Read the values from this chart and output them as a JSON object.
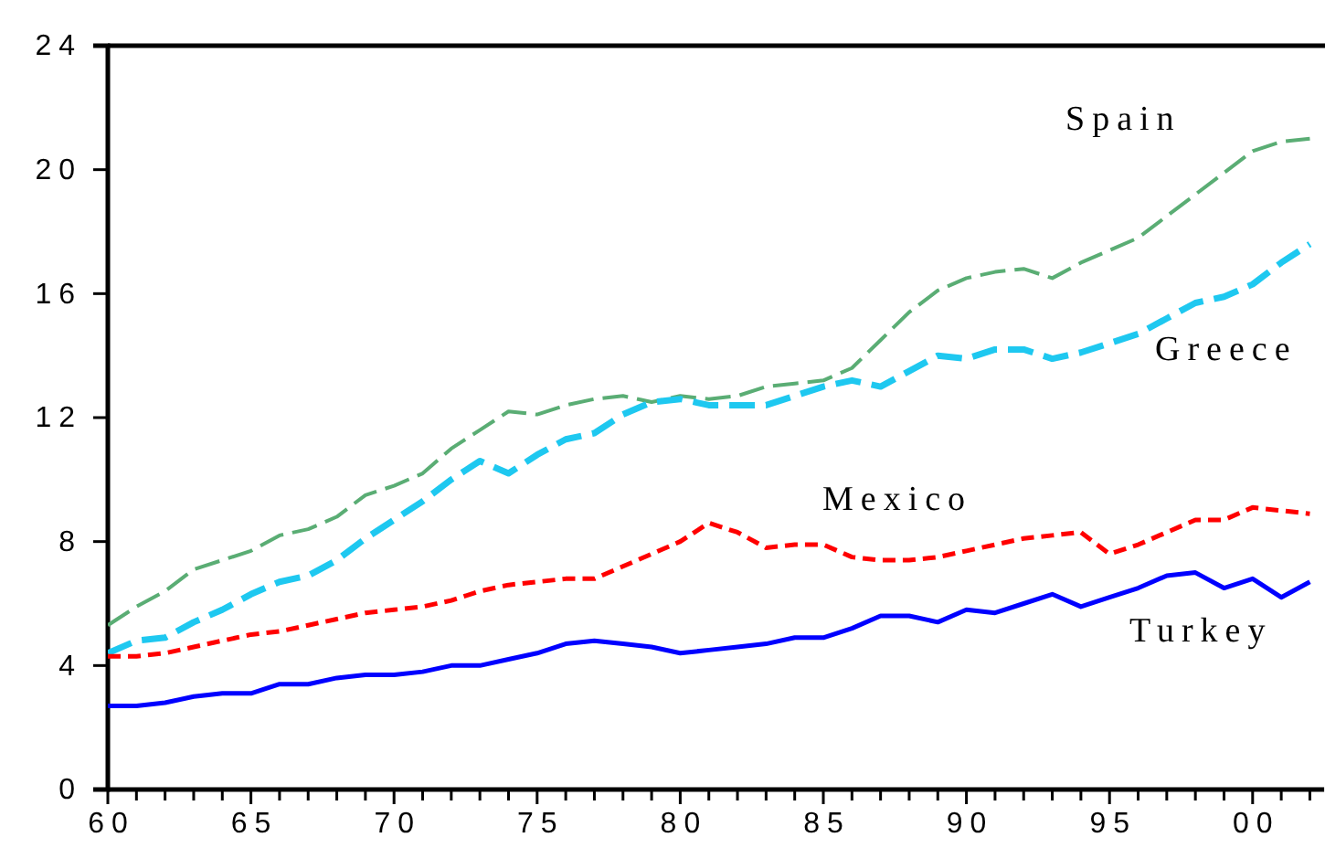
{
  "chart_data": {
    "type": "line",
    "xlim": [
      1960,
      2002.5
    ],
    "ylim": [
      0,
      24
    ],
    "yticks": [
      0,
      4,
      8,
      12,
      16,
      20,
      24
    ],
    "xticks": [
      {
        "value": 1960,
        "label": "60"
      },
      {
        "value": 1961,
        "label": null
      },
      {
        "value": 1962,
        "label": null
      },
      {
        "value": 1963,
        "label": null
      },
      {
        "value": 1964,
        "label": null
      },
      {
        "value": 1965,
        "label": "65"
      },
      {
        "value": 1966,
        "label": null
      },
      {
        "value": 1967,
        "label": null
      },
      {
        "value": 1968,
        "label": null
      },
      {
        "value": 1969,
        "label": null
      },
      {
        "value": 1970,
        "label": "70"
      },
      {
        "value": 1971,
        "label": null
      },
      {
        "value": 1972,
        "label": null
      },
      {
        "value": 1973,
        "label": null
      },
      {
        "value": 1974,
        "label": null
      },
      {
        "value": 1975,
        "label": "75"
      },
      {
        "value": 1976,
        "label": null
      },
      {
        "value": 1977,
        "label": null
      },
      {
        "value": 1978,
        "label": null
      },
      {
        "value": 1979,
        "label": null
      },
      {
        "value": 1980,
        "label": "80"
      },
      {
        "value": 1981,
        "label": null
      },
      {
        "value": 1982,
        "label": null
      },
      {
        "value": 1983,
        "label": null
      },
      {
        "value": 1984,
        "label": null
      },
      {
        "value": 1985,
        "label": "85"
      },
      {
        "value": 1986,
        "label": null
      },
      {
        "value": 1987,
        "label": null
      },
      {
        "value": 1988,
        "label": null
      },
      {
        "value": 1989,
        "label": null
      },
      {
        "value": 1990,
        "label": "90"
      },
      {
        "value": 1991,
        "label": null
      },
      {
        "value": 1992,
        "label": null
      },
      {
        "value": 1993,
        "label": null
      },
      {
        "value": 1994,
        "label": null
      },
      {
        "value": 1995,
        "label": "95"
      },
      {
        "value": 1996,
        "label": null
      },
      {
        "value": 1997,
        "label": null
      },
      {
        "value": 1998,
        "label": null
      },
      {
        "value": 1999,
        "label": null
      },
      {
        "value": 2000,
        "label": "00"
      },
      {
        "value": 2001,
        "label": null
      },
      {
        "value": 2002,
        "label": null
      }
    ],
    "x": [
      1960,
      1961,
      1962,
      1963,
      1964,
      1965,
      1966,
      1967,
      1968,
      1969,
      1970,
      1971,
      1972,
      1973,
      1974,
      1975,
      1976,
      1977,
      1978,
      1979,
      1980,
      1981,
      1982,
      1983,
      1984,
      1985,
      1986,
      1987,
      1988,
      1989,
      1990,
      1991,
      1992,
      1993,
      1994,
      1995,
      1996,
      1997,
      1998,
      1999,
      2000,
      2001,
      2002
    ],
    "grid": false,
    "legend": false,
    "marker": "none",
    "series": [
      {
        "name": "Spain",
        "color": "#5aad74",
        "line_style": "dashed",
        "values": [
          5.3,
          5.9,
          6.4,
          7.1,
          7.4,
          7.7,
          8.2,
          8.4,
          8.8,
          9.5,
          9.8,
          10.2,
          11.0,
          11.6,
          12.2,
          12.1,
          12.4,
          12.6,
          12.7,
          12.5,
          12.7,
          12.6,
          12.7,
          13.0,
          13.1,
          13.2,
          13.6,
          14.5,
          15.4,
          16.1,
          16.5,
          16.7,
          16.8,
          16.5,
          17.0,
          17.4,
          17.8,
          18.5,
          19.2,
          19.9,
          20.6,
          20.9,
          21.0
        ]
      },
      {
        "name": "Greece",
        "color": "#1ec8f0",
        "line_style": "dashed",
        "values": [
          4.4,
          4.8,
          4.9,
          5.4,
          5.8,
          6.3,
          6.7,
          6.9,
          7.4,
          8.1,
          8.7,
          9.3,
          10.0,
          10.6,
          10.2,
          10.8,
          11.3,
          11.5,
          12.1,
          12.5,
          12.6,
          12.4,
          12.4,
          12.4,
          12.7,
          13.0,
          13.2,
          13.0,
          13.5,
          14.0,
          13.9,
          14.2,
          14.2,
          13.9,
          14.1,
          14.4,
          14.7,
          15.2,
          15.7,
          15.9,
          16.3,
          17.0,
          17.6
        ]
      },
      {
        "name": "Mexico",
        "color": "#ff0000",
        "line_style": "dashed",
        "values": [
          4.3,
          4.3,
          4.4,
          4.6,
          4.8,
          5.0,
          5.1,
          5.3,
          5.5,
          5.7,
          5.8,
          5.9,
          6.1,
          6.4,
          6.6,
          6.7,
          6.8,
          6.8,
          7.2,
          7.6,
          8.0,
          8.6,
          8.3,
          7.8,
          7.9,
          7.9,
          7.5,
          7.4,
          7.4,
          7.5,
          7.7,
          7.9,
          8.1,
          8.2,
          8.3,
          7.6,
          7.9,
          8.3,
          8.7,
          8.7,
          9.1,
          9.0,
          8.9
        ]
      },
      {
        "name": "Turkey",
        "color": "#0000ff",
        "line_style": "solid",
        "values": [
          2.7,
          2.7,
          2.8,
          3.0,
          3.1,
          3.1,
          3.4,
          3.4,
          3.6,
          3.7,
          3.7,
          3.8,
          4.0,
          4.0,
          4.2,
          4.4,
          4.7,
          4.8,
          4.7,
          4.6,
          4.4,
          4.5,
          4.6,
          4.7,
          4.9,
          4.9,
          5.2,
          5.6,
          5.6,
          5.4,
          5.8,
          5.7,
          6.0,
          6.3,
          5.9,
          6.2,
          6.5,
          6.9,
          7.0,
          6.5,
          6.8,
          6.2,
          6.7
        ]
      }
    ]
  }
}
